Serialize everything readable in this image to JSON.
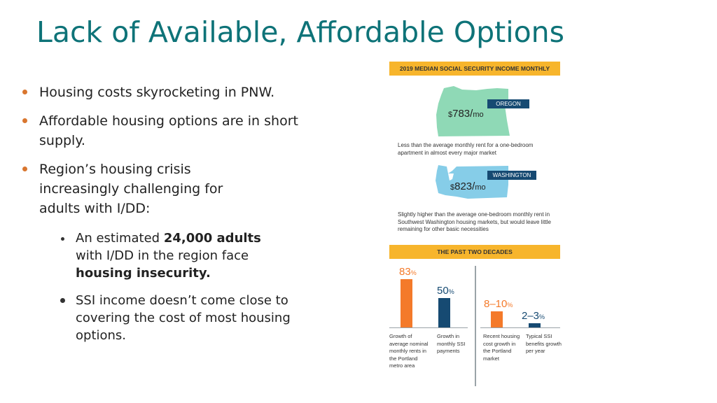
{
  "slide": {
    "title": "Lack of Available, Affordable Options",
    "bullets": [
      "Housing costs skyrocketing in PNW.",
      "Affordable housing options are in short supply.",
      "Region’s housing crisis increasingly challenging for adults with I/DD:"
    ],
    "sub1": {
      "pre": "An estimated ",
      "bold1": "24,000 adults",
      "mid": " with I/DD in the region face ",
      "bold2": "housing insecurity."
    },
    "sub2": "SSI income doesn’t come close to covering the cost of most housing options."
  },
  "infographic": {
    "banner_top": "2019 MEDIAN SOCIAL SECURITY INCOME MONTHLY",
    "oregon": {
      "label": "OREGON",
      "currency": "$",
      "amount": "783/",
      "unit": "mo",
      "note": "Less than the average monthly rent for a one-bedroom apartment in almost every major market"
    },
    "washington": {
      "label": "WASHINGTON",
      "currency": "$",
      "amount": "823/",
      "unit": "mo",
      "note": "Slightly higher than the average one-bedroom monthly rent in Southwest Washington housing markets, but would leave little remaining for other basic necessities"
    },
    "banner_bottom": "THE PAST TWO DECADES",
    "colors": {
      "orange": "#f47a2a",
      "navy": "#164a72",
      "oregon_green": "#8fd9b6",
      "washington_blue": "#86cde8",
      "banner": "#f7b52c",
      "title_teal": "#0e7378"
    }
  },
  "chart_data": {
    "type": "bar",
    "title": "THE PAST TWO DECADES",
    "categories": [
      "Growth of average nominal monthly rents in the Portland metro area",
      "Growth in monthly SSI payments",
      "Recent housing cost growth in the Portland market",
      "Typical SSI benefits growth per year"
    ],
    "values": [
      83,
      50,
      9,
      2.5
    ],
    "value_labels": [
      {
        "main": "83",
        "unit": "%"
      },
      {
        "main": "50",
        "unit": "%"
      },
      {
        "main": "8–10",
        "unit": "%"
      },
      {
        "main": "2–3",
        "unit": "%"
      }
    ],
    "colors": [
      "#f47a2a",
      "#164a72",
      "#f47a2a",
      "#164a72"
    ]
  }
}
